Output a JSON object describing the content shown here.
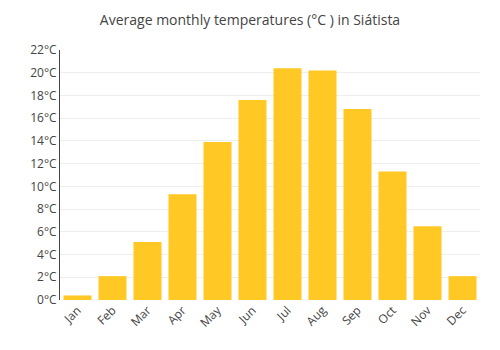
{
  "chart_data": {
    "type": "bar",
    "title": "Average monthly temperatures (°C ) in Siátista",
    "categories": [
      "Jan",
      "Feb",
      "Mar",
      "Apr",
      "May",
      "Jun",
      "Jul",
      "Aug",
      "Sep",
      "Oct",
      "Nov",
      "Dec"
    ],
    "values": [
      0.4,
      2.1,
      5.1,
      9.3,
      13.9,
      17.6,
      20.4,
      20.2,
      16.8,
      11.3,
      6.5,
      2.1
    ],
    "color": "#FFC825",
    "ylim": [
      0,
      22
    ],
    "yticks": [
      {
        "value": 0,
        "label": "0°C"
      },
      {
        "value": 2,
        "label": "2°C"
      },
      {
        "value": 4,
        "label": "4°C"
      },
      {
        "value": 6,
        "label": "6°C"
      },
      {
        "value": 8,
        "label": "8°C"
      },
      {
        "value": 10,
        "label": "10°C"
      },
      {
        "value": 12,
        "label": "12°C"
      },
      {
        "value": 14,
        "label": "14°C"
      },
      {
        "value": 16,
        "label": "16°C"
      },
      {
        "value": 18,
        "label": "18°C"
      },
      {
        "value": 20,
        "label": "20°C"
      },
      {
        "value": 22,
        "label": "22°C"
      }
    ],
    "grid": true
  }
}
